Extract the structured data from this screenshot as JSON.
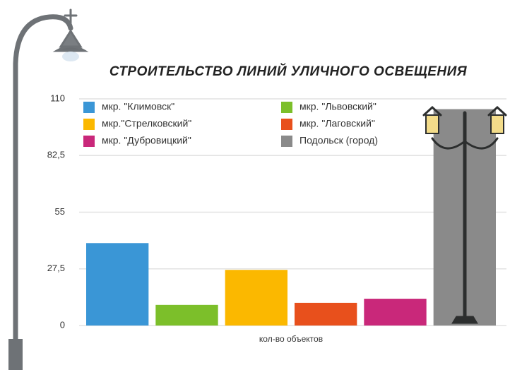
{
  "chart_data": {
    "type": "bar",
    "title": "СТРОИТЕЛЬСТВО ЛИНИЙ УЛИЧНОГО ОСВЕЩЕНИЯ",
    "categories": [
      "кол-во объектов"
    ],
    "series": [
      {
        "name": "мкр. \"Климовск\"",
        "color": "#3a96d6",
        "values": [
          40
        ]
      },
      {
        "name": "мкр. \"Львовский\"",
        "color": "#7cbf2a",
        "values": [
          10
        ]
      },
      {
        "name": "мкр.\"Стрелковский\"",
        "color": "#fbb800",
        "values": [
          27
        ]
      },
      {
        "name": "мкр. \"Лаговский\"",
        "color": "#e8501c",
        "values": [
          11
        ]
      },
      {
        "name": "мкр. \"Дубровицкий\"",
        "color": "#c9287a",
        "values": [
          13
        ]
      },
      {
        "name": "Подольск (город)",
        "color": "#8a8a8a",
        "values": [
          105
        ]
      }
    ],
    "ylim": [
      0,
      110
    ],
    "yticks": [
      0,
      {
        "value": 27.5,
        "label": "27,5"
      },
      55,
      {
        "value": 82.5,
        "label": "82,5"
      },
      110
    ],
    "grid": true
  }
}
